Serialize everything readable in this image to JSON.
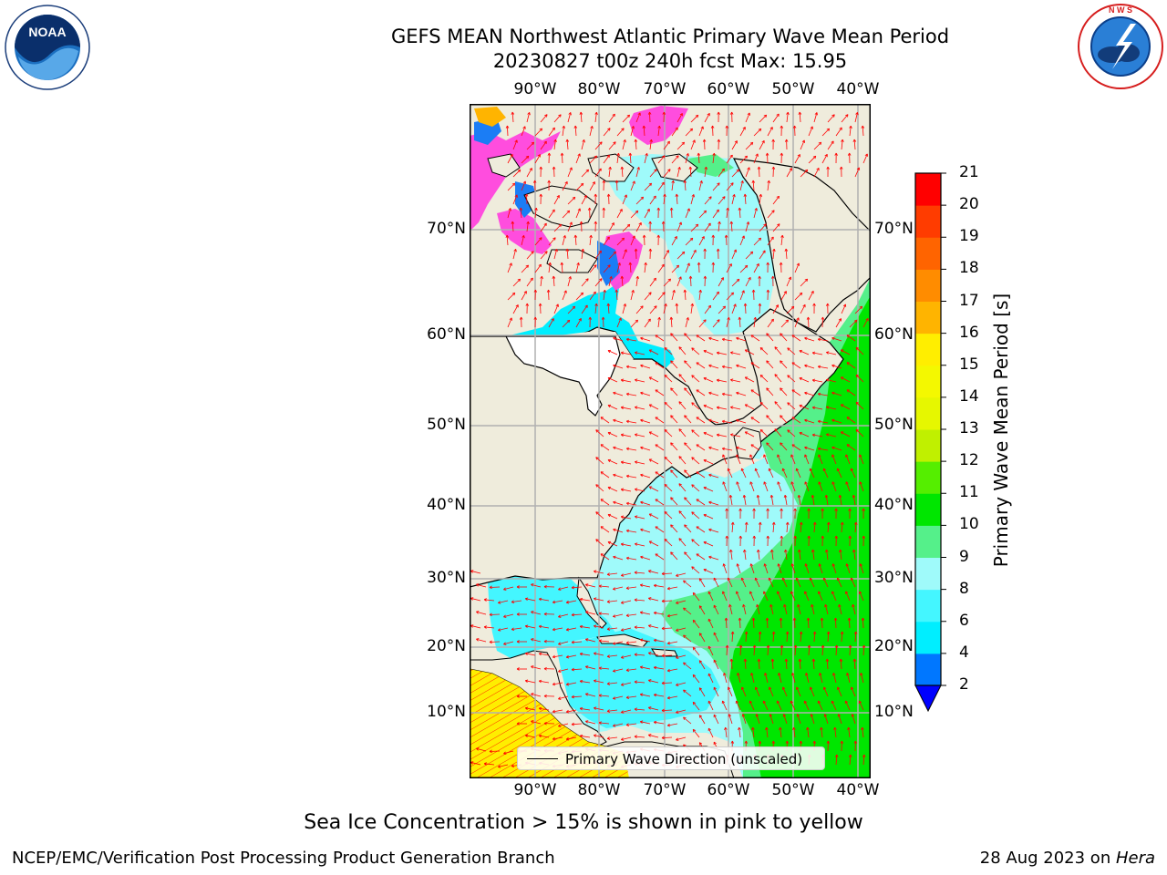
{
  "title": {
    "line1": "GEFS MEAN Northwest Atlantic Primary Wave Mean Period",
    "line2": "20230827 t00z 240h fcst   Max: 15.95"
  },
  "logos": {
    "left": {
      "name": "NOAA",
      "text": "NOAA",
      "ring_text": "NATIONAL OCEANIC AND ATMOSPHERIC ADMINISTRATION · U.S. DEPARTMENT OF COMMERCE"
    },
    "right": {
      "name": "National Weather Service",
      "ring_text": "NATIONAL WEATHER SERVICE"
    }
  },
  "map": {
    "lon_ticks": [
      "90°W",
      "80°W",
      "70°W",
      "60°W",
      "50°W",
      "40°W"
    ],
    "lat_ticks": [
      "70°N",
      "60°N",
      "50°N",
      "40°N",
      "30°N",
      "20°N",
      "10°N"
    ],
    "extent": {
      "lon_min": -100,
      "lon_max": -38,
      "lat_min": 0,
      "lat_max": 80
    },
    "legend_label": "Primary Wave Direction (unscaled)",
    "arrow_color": "#ff0000",
    "land_color": "#efecdc",
    "grid_color": "#b0b0b0"
  },
  "colorbar": {
    "label": "Primary Wave Mean Period [s]",
    "ticks": [
      "2",
      "4",
      "6",
      "8",
      "9",
      "10",
      "11",
      "12",
      "13",
      "14",
      "15",
      "16",
      "17",
      "18",
      "19",
      "20",
      "21"
    ],
    "bins": [
      {
        "from": 2,
        "to": 4,
        "color": "#0077ff"
      },
      {
        "from": 4,
        "to": 6,
        "color": "#00eeff"
      },
      {
        "from": 6,
        "to": 8,
        "color": "#44f6ff"
      },
      {
        "from": 8,
        "to": 9,
        "color": "#9ffafa"
      },
      {
        "from": 9,
        "to": 10,
        "color": "#55f08a"
      },
      {
        "from": 10,
        "to": 11,
        "color": "#00e600"
      },
      {
        "from": 11,
        "to": 12,
        "color": "#55ee00"
      },
      {
        "from": 12,
        "to": 13,
        "color": "#c0f000"
      },
      {
        "from": 13,
        "to": 14,
        "color": "#e6f700"
      },
      {
        "from": 14,
        "to": 15,
        "color": "#f4f800"
      },
      {
        "from": 15,
        "to": 16,
        "color": "#ffee00"
      },
      {
        "from": 16,
        "to": 17,
        "color": "#ffb400"
      },
      {
        "from": 17,
        "to": 18,
        "color": "#ff8c00"
      },
      {
        "from": 18,
        "to": 19,
        "color": "#ff6400"
      },
      {
        "from": 19,
        "to": 20,
        "color": "#ff3c00"
      },
      {
        "from": 20,
        "to": 21,
        "color": "#ff0000"
      }
    ],
    "under_color": "#0000ff"
  },
  "footer": {
    "note": "Sea Ice Concentration > 15% is shown in pink to yellow",
    "credit_left": "NCEP/EMC/Verification Post Processing Product Generation Branch",
    "date": "28 Aug 2023 on ",
    "machine": "Hera"
  }
}
